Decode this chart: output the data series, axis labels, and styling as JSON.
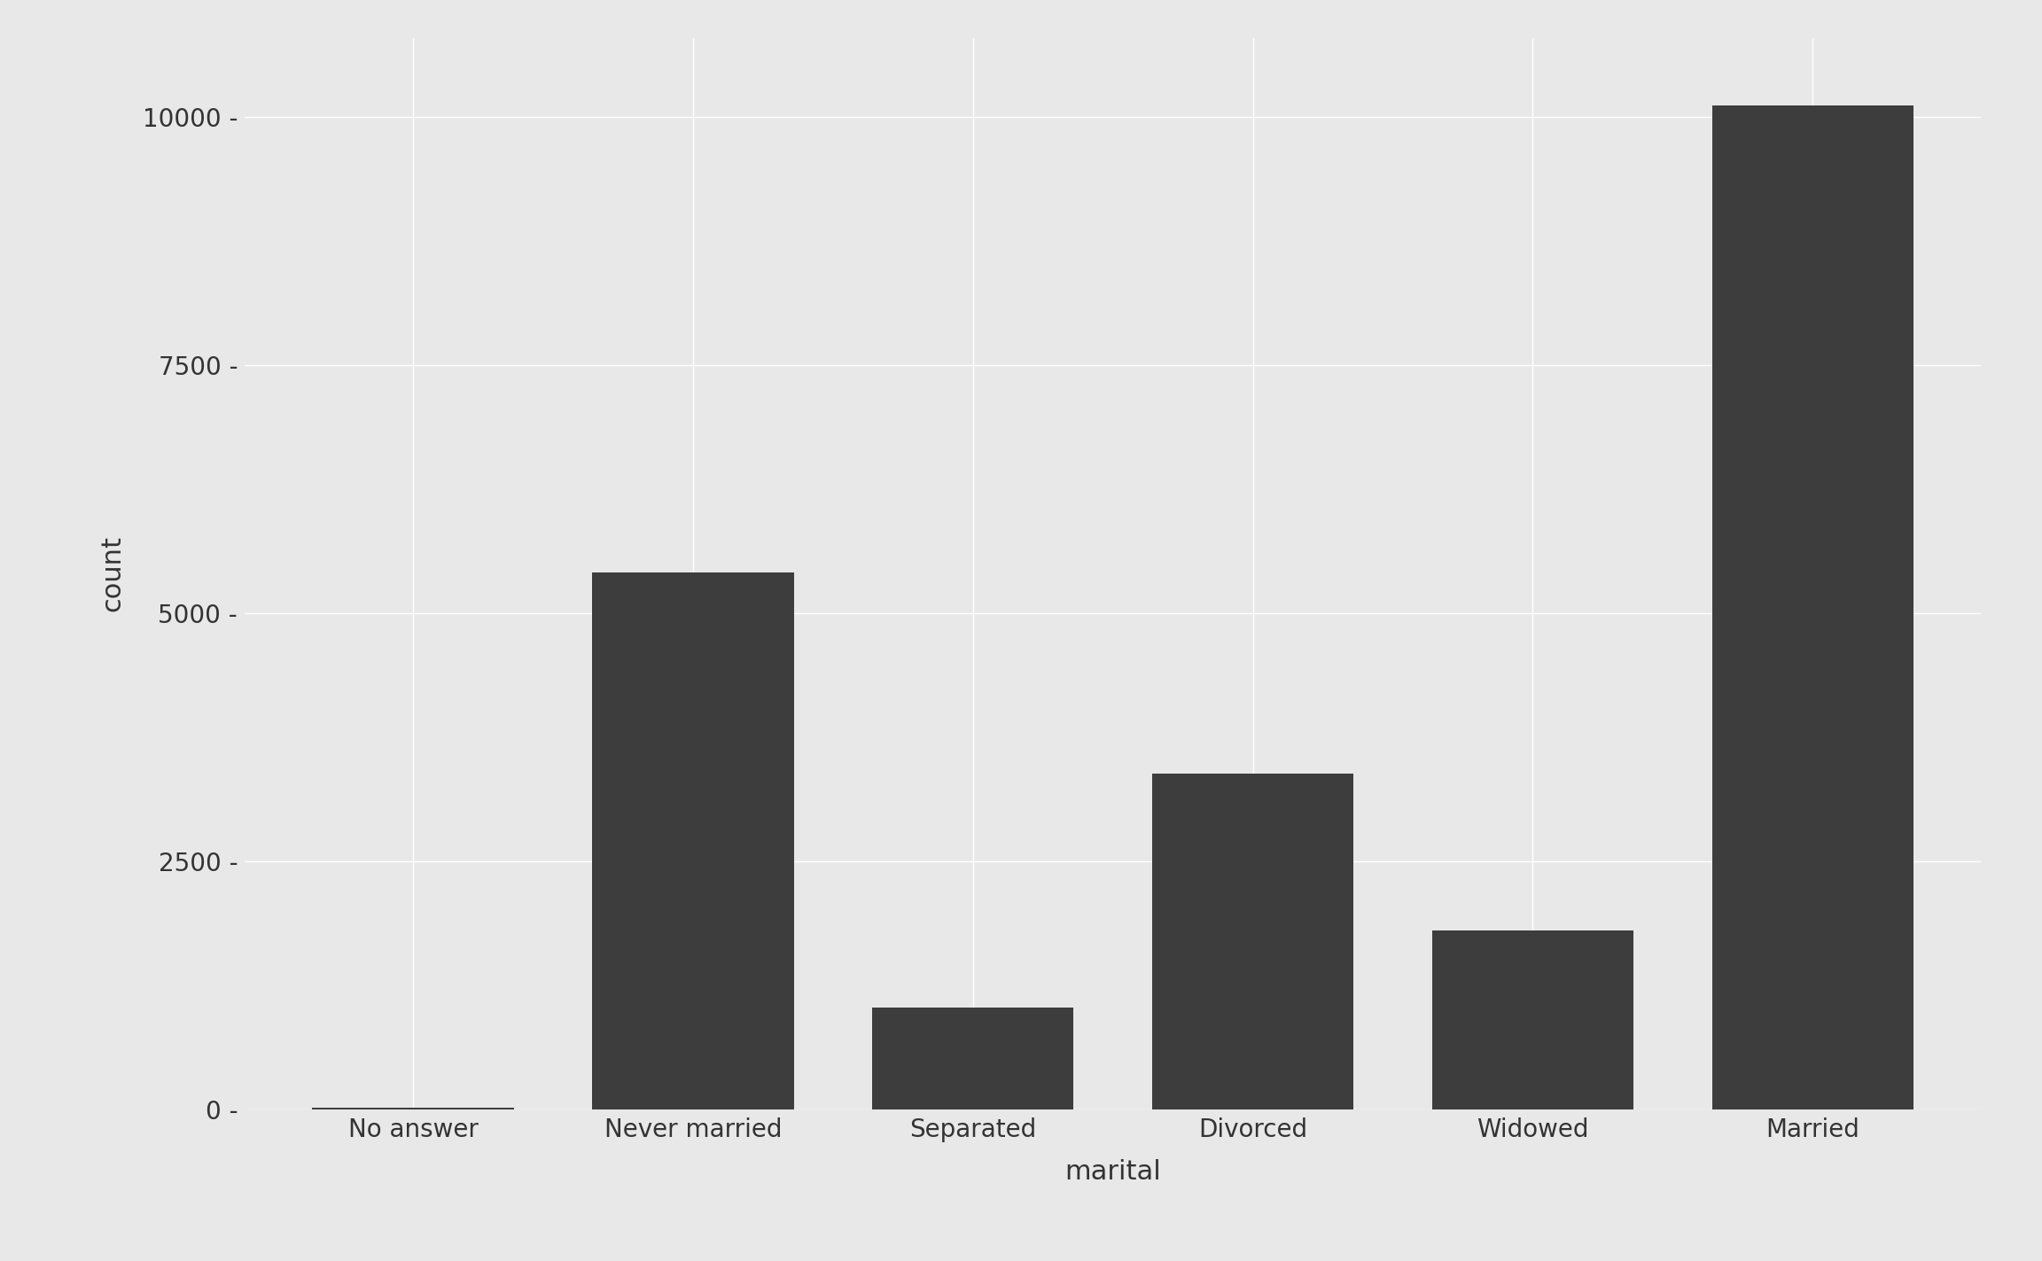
{
  "categories": [
    "No answer",
    "Never married",
    "Separated",
    "Divorced",
    "Widowed",
    "Married"
  ],
  "values": [
    17,
    5416,
    1025,
    3383,
    1807,
    10117
  ],
  "bar_color": "#3d3d3d",
  "xlabel": "marital",
  "ylabel": "count",
  "yticks": [
    0,
    2500,
    5000,
    7500,
    10000
  ],
  "ytick_labels": [
    "0 -",
    "2500 -",
    "5000 -",
    "7500 -",
    "10000 -"
  ],
  "ylim": [
    0,
    10800
  ],
  "background_color": "#e8e8e8",
  "panel_background": "#e8e8e8",
  "outer_background": "#e8e8e8",
  "grid_color": "#ffffff",
  "xlabel_fontsize": 22,
  "ylabel_fontsize": 22,
  "tick_fontsize": 20,
  "bar_width": 0.72,
  "grid_linewidth": 1.0
}
